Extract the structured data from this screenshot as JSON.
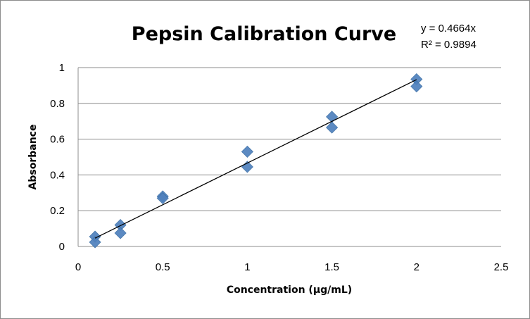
{
  "chart_data": {
    "type": "scatter",
    "title": "Pepsin Calibration Curve",
    "xlabel": "Concentration (µg/mL)",
    "ylabel": "Absorbance",
    "xlim": [
      0,
      2.5
    ],
    "ylim": [
      0,
      1
    ],
    "xticks": [
      "0",
      "0.5",
      "1",
      "1.5",
      "2",
      "2.5"
    ],
    "yticks": [
      "0",
      "0.2",
      "0.4",
      "0.6",
      "0.8",
      "1"
    ],
    "grid": "horizontal",
    "series": [
      {
        "name": "Absorbance",
        "color": "#4f81bd",
        "marker": "diamond",
        "x": [
          0.1,
          0.1,
          0.25,
          0.25,
          0.5,
          0.5,
          1,
          1,
          1.5,
          1.5,
          2,
          2
        ],
        "y": [
          0.055,
          0.024,
          0.12,
          0.075,
          0.28,
          0.27,
          0.53,
          0.445,
          0.725,
          0.665,
          0.935,
          0.895
        ]
      }
    ],
    "trendline": {
      "type": "linear",
      "slope": 0.4664,
      "intercept": 0,
      "x_range": [
        0.1,
        2
      ]
    },
    "annotations": {
      "equation": "y = 0.4664x",
      "r_squared": "R² = 0.9894"
    }
  }
}
